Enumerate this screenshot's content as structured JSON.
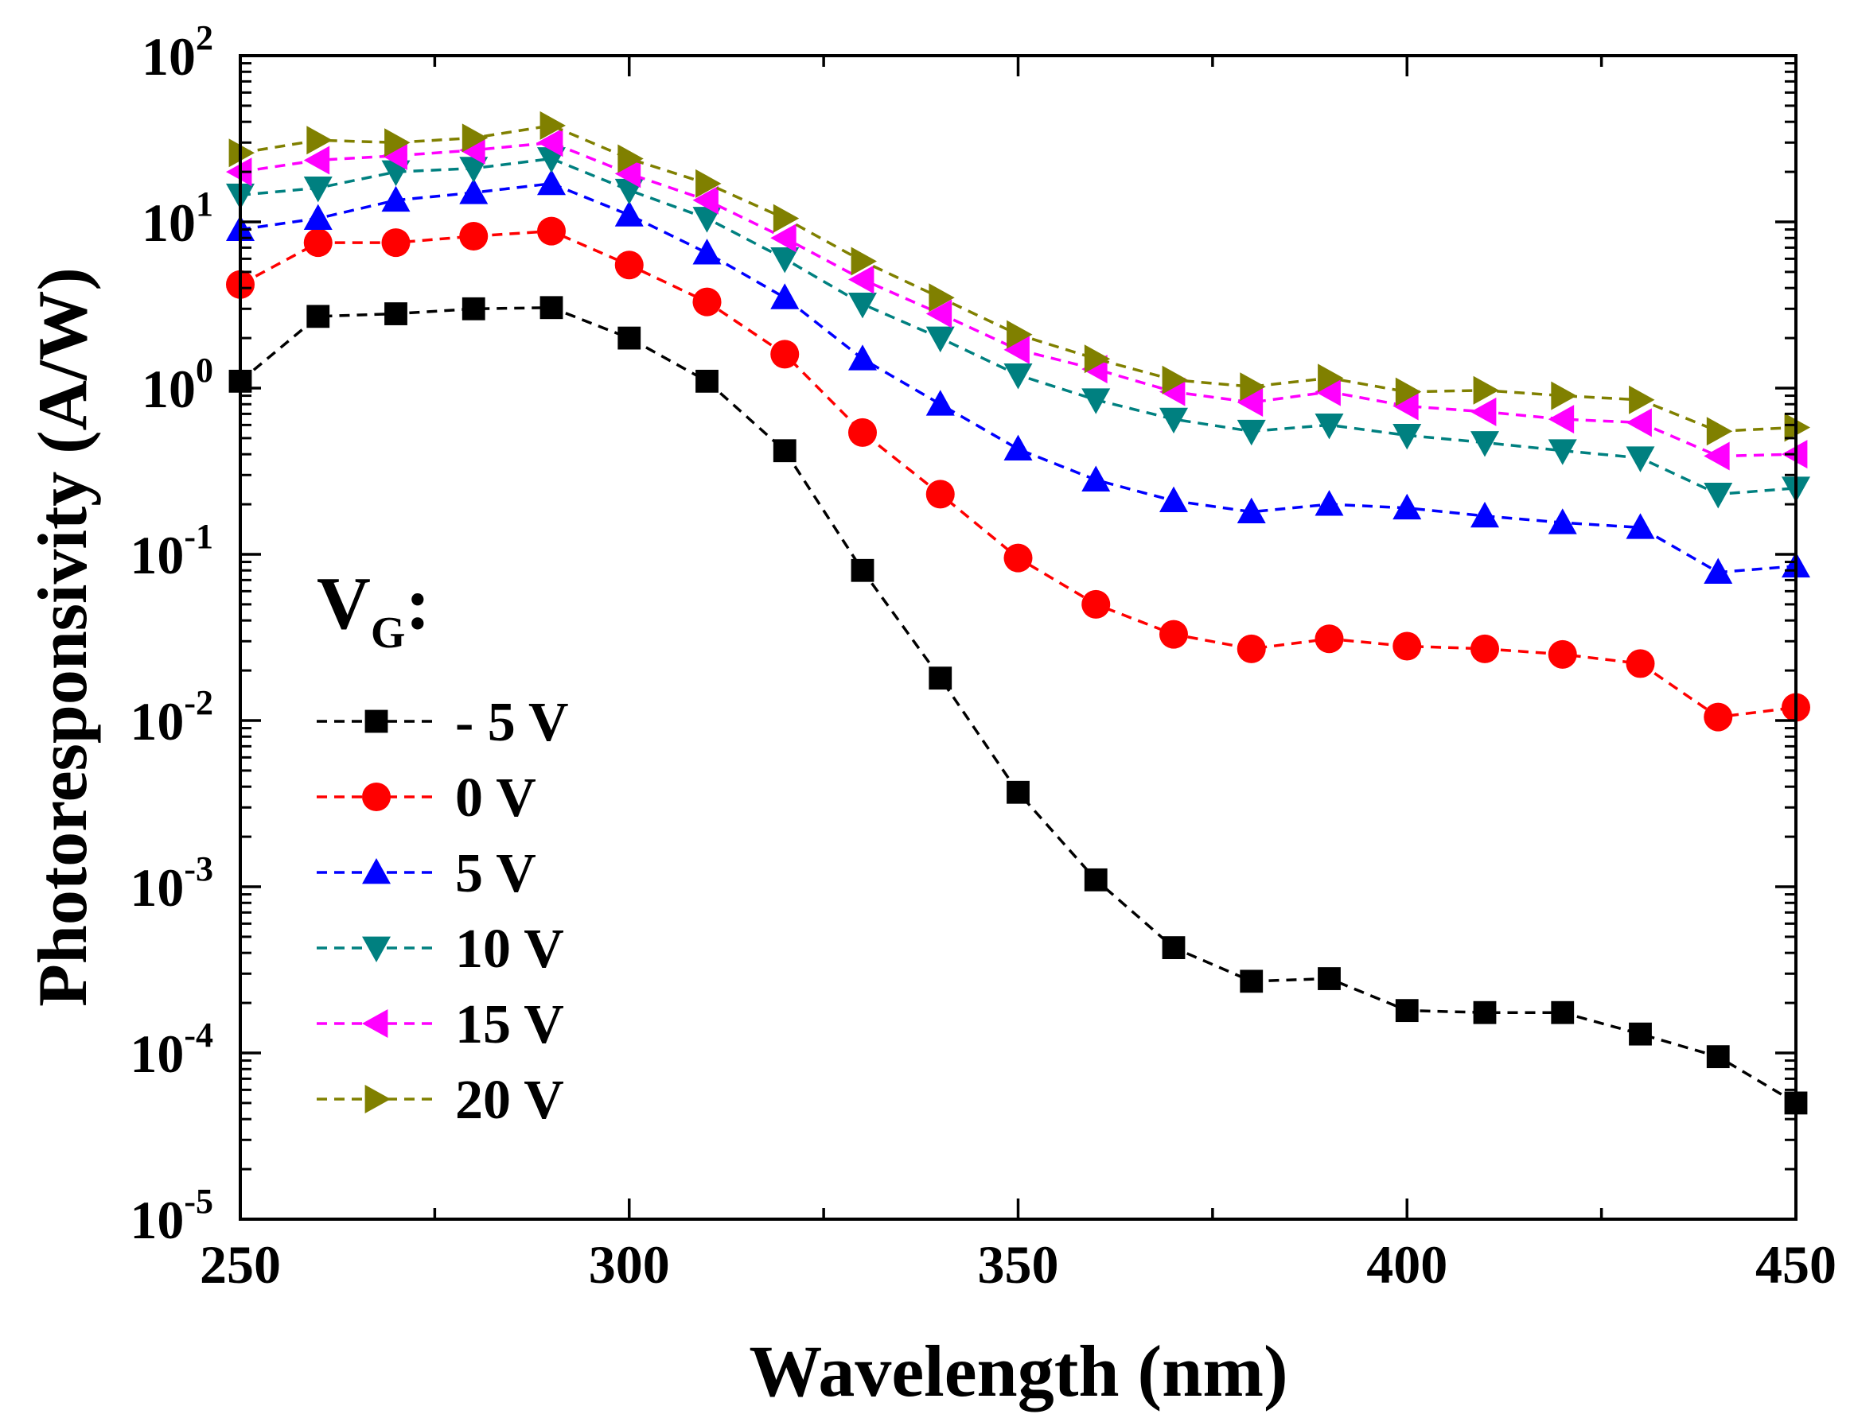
{
  "chart_data": {
    "type": "line",
    "xlabel": "Wavelength (nm)",
    "ylabel": "Photoresponsivity (A/W)",
    "xlim": [
      250,
      450
    ],
    "ylim": [
      1e-05,
      100
    ],
    "yscale": "log",
    "x_ticks": [
      250,
      300,
      350,
      400,
      450
    ],
    "x_tick_labels": [
      "250",
      "300",
      "350",
      "400",
      "450"
    ],
    "y_ticks": [
      {
        "value": 1e-05,
        "base": "10",
        "exp": "-5"
      },
      {
        "value": 0.0001,
        "base": "10",
        "exp": "-4"
      },
      {
        "value": 0.001,
        "base": "10",
        "exp": "-3"
      },
      {
        "value": 0.01,
        "base": "10",
        "exp": "-2"
      },
      {
        "value": 0.1,
        "base": "10",
        "exp": "-1"
      },
      {
        "value": 1,
        "base": "10",
        "exp": "0"
      },
      {
        "value": 10,
        "base": "10",
        "exp": "1"
      },
      {
        "value": 100,
        "base": "10",
        "exp": "2"
      }
    ],
    "legend": {
      "title_main": "V",
      "title_sub": "G",
      "title_suffix": ":",
      "placement": "left-bottom"
    },
    "x": [
      250,
      260,
      270,
      280,
      290,
      300,
      310,
      320,
      330,
      340,
      350,
      360,
      370,
      380,
      390,
      400,
      410,
      420,
      430,
      440,
      450
    ],
    "series": [
      {
        "name": "- 5 V",
        "color": "#000000",
        "marker": "square",
        "values": [
          1.1,
          2.7,
          2.8,
          3.0,
          3.05,
          2.0,
          1.1,
          0.42,
          0.08,
          0.018,
          0.0037,
          0.0011,
          0.00043,
          0.00027,
          0.00028,
          0.00018,
          0.000175,
          0.000175,
          0.00013,
          9.5e-05,
          5e-05
        ]
      },
      {
        "name": "0 V",
        "color": "#ff0000",
        "marker": "circle",
        "values": [
          4.2,
          7.5,
          7.5,
          8.2,
          8.8,
          5.5,
          3.3,
          1.6,
          0.54,
          0.23,
          0.095,
          0.05,
          0.033,
          0.027,
          0.031,
          0.028,
          0.027,
          0.025,
          0.022,
          0.0105,
          0.012
        ]
      },
      {
        "name": "5 V",
        "color": "#0000ff",
        "marker": "triangle-up",
        "values": [
          9.0,
          10.5,
          13.5,
          15.0,
          17.0,
          11.0,
          6.5,
          3.5,
          1.5,
          0.8,
          0.43,
          0.28,
          0.21,
          0.18,
          0.2,
          0.19,
          0.17,
          0.155,
          0.145,
          0.078,
          0.085
        ]
      },
      {
        "name": "10 V",
        "color": "#008080",
        "marker": "triangle-down",
        "values": [
          14.5,
          16.0,
          20.0,
          21.0,
          24.0,
          15.5,
          10.5,
          6.0,
          3.2,
          2.0,
          1.2,
          0.85,
          0.65,
          0.55,
          0.6,
          0.52,
          0.47,
          0.42,
          0.38,
          0.23,
          0.25
        ]
      },
      {
        "name": "15 V",
        "color": "#ff00ff",
        "marker": "triangle-left",
        "values": [
          20.0,
          23.5,
          25.0,
          27.0,
          30.0,
          19.5,
          13.5,
          8.0,
          4.5,
          2.8,
          1.7,
          1.3,
          0.95,
          0.82,
          0.95,
          0.78,
          0.72,
          0.65,
          0.62,
          0.39,
          0.4
        ]
      },
      {
        "name": "20 V",
        "color": "#808000",
        "marker": "triangle-right",
        "values": [
          26.0,
          31.0,
          30.0,
          32.0,
          38.0,
          24.0,
          17.0,
          10.5,
          5.8,
          3.5,
          2.1,
          1.5,
          1.12,
          1.02,
          1.15,
          0.95,
          0.97,
          0.9,
          0.85,
          0.55,
          0.58
        ]
      }
    ]
  }
}
